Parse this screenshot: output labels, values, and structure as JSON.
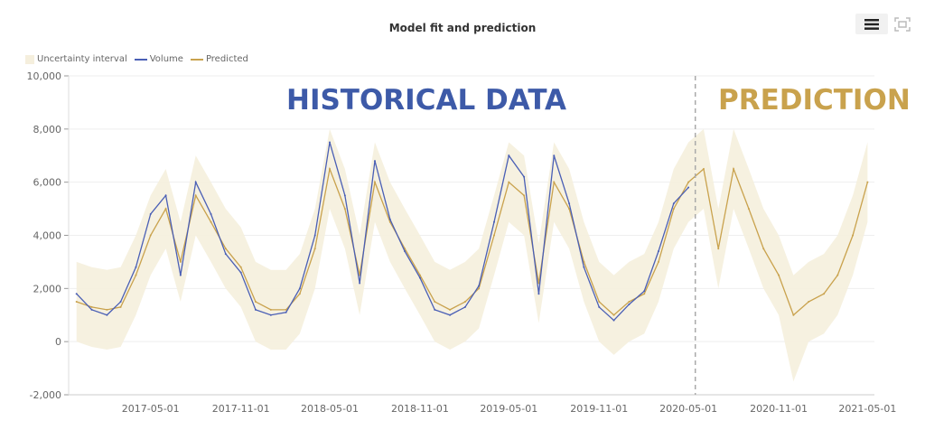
{
  "chart_data": {
    "type": "line",
    "title": "Model fit and prediction",
    "legend": {
      "placement": "top-left",
      "entries": [
        "Uncertainty interval",
        "Volume",
        "Predicted"
      ]
    },
    "annotations": {
      "historical": "HISTORICAL DATA",
      "prediction": "PREDICTION",
      "split_date": "2020-05-15"
    },
    "colors": {
      "volume": "#4a5fb5",
      "predicted": "#c9a24d",
      "interval": "#f5efdd",
      "historical_text": "#3d5aa8",
      "prediction_text": "#c9a24d"
    },
    "grid": true,
    "ylim": [
      -2000,
      10000
    ],
    "yticks": [
      "-2,000",
      "0",
      "2,000",
      "4,000",
      "6,000",
      "8,000",
      "10,000"
    ],
    "ytick_values": [
      -2000,
      0,
      2000,
      4000,
      6000,
      8000,
      10000
    ],
    "xlim": [
      "2016-11-15",
      "2021-05-15"
    ],
    "xticks": [
      "2017-05-01",
      "2017-11-01",
      "2018-05-01",
      "2018-11-01",
      "2019-05-01",
      "2019-11-01",
      "2020-05-01",
      "2020-11-01",
      "2021-05-01"
    ],
    "x": [
      "2016-12-01",
      "2017-01-01",
      "2017-02-01",
      "2017-03-01",
      "2017-04-01",
      "2017-05-01",
      "2017-06-01",
      "2017-07-01",
      "2017-08-01",
      "2017-09-01",
      "2017-10-01",
      "2017-11-01",
      "2017-12-01",
      "2018-01-01",
      "2018-02-01",
      "2018-03-01",
      "2018-04-01",
      "2018-05-01",
      "2018-06-01",
      "2018-07-01",
      "2018-08-01",
      "2018-09-01",
      "2018-10-01",
      "2018-11-01",
      "2018-12-01",
      "2019-01-01",
      "2019-02-01",
      "2019-03-01",
      "2019-04-01",
      "2019-05-01",
      "2019-06-01",
      "2019-07-01",
      "2019-08-01",
      "2019-09-01",
      "2019-10-01",
      "2019-11-01",
      "2019-12-01",
      "2020-01-01",
      "2020-02-01",
      "2020-03-01",
      "2020-04-01",
      "2020-05-01",
      "2020-06-01",
      "2020-07-01",
      "2020-08-01",
      "2020-09-01",
      "2020-10-01",
      "2020-11-01",
      "2020-12-01",
      "2021-01-01",
      "2021-02-01",
      "2021-03-01",
      "2021-04-01",
      "2021-05-01"
    ],
    "series": [
      {
        "name": "Predicted",
        "values": [
          1500,
          1300,
          1200,
          1300,
          2500,
          4000,
          5000,
          3000,
          5500,
          4500,
          3500,
          2800,
          1500,
          1200,
          1200,
          1800,
          3500,
          6500,
          5000,
          2500,
          6000,
          4500,
          3500,
          2500,
          1500,
          1200,
          1500,
          2000,
          4000,
          6000,
          5500,
          2200,
          6000,
          5000,
          3000,
          1500,
          1000,
          1500,
          1800,
          3000,
          5000,
          6000,
          6500,
          3500,
          6500,
          5000,
          3500,
          2500,
          1000,
          1500,
          1800,
          2500,
          4000,
          6000
        ]
      },
      {
        "name": "Volume",
        "values": [
          1800,
          1200,
          1000,
          1500,
          2800,
          4800,
          5500,
          2500,
          6000,
          4800,
          3300,
          2600,
          1200,
          1000,
          1100,
          2000,
          4000,
          7500,
          5500,
          2200,
          6800,
          4600,
          3400,
          2400,
          1200,
          1000,
          1300,
          2100,
          4500,
          7000,
          6200,
          1800,
          7000,
          5200,
          2800,
          1300,
          800,
          1400,
          1900,
          3400,
          5200,
          5800,
          null,
          null,
          null,
          null,
          null,
          null,
          null,
          null,
          null,
          null,
          null,
          null
        ]
      },
      {
        "name": "Uncertainty interval",
        "lower": [
          0,
          -200,
          -300,
          -200,
          1000,
          2500,
          3500,
          1500,
          4000,
          3000,
          2000,
          1300,
          0,
          -300,
          -300,
          300,
          2000,
          5000,
          3500,
          1000,
          4500,
          3000,
          2000,
          1000,
          0,
          -300,
          0,
          500,
          2500,
          4500,
          4000,
          700,
          4500,
          3500,
          1500,
          0,
          -500,
          0,
          300,
          1500,
          3500,
          4500,
          5000,
          2000,
          5000,
          3500,
          2000,
          1000,
          -1500,
          0,
          300,
          1000,
          2500,
          4500
        ],
        "upper": [
          3000,
          2800,
          2700,
          2800,
          4000,
          5500,
          6500,
          4500,
          7000,
          6000,
          5000,
          4300,
          3000,
          2700,
          2700,
          3300,
          5000,
          8000,
          6500,
          4000,
          7500,
          6000,
          5000,
          4000,
          3000,
          2700,
          3000,
          3500,
          5500,
          7500,
          7000,
          3700,
          7500,
          6500,
          4500,
          3000,
          2500,
          3000,
          3300,
          4500,
          6500,
          7500,
          8000,
          5000,
          8000,
          6500,
          5000,
          4000,
          2500,
          3000,
          3300,
          4000,
          5500,
          7500
        ]
      }
    ]
  },
  "toolbar": {
    "menu_icon": "hamburger-icon",
    "fullscreen_icon": "fullscreen-icon"
  }
}
